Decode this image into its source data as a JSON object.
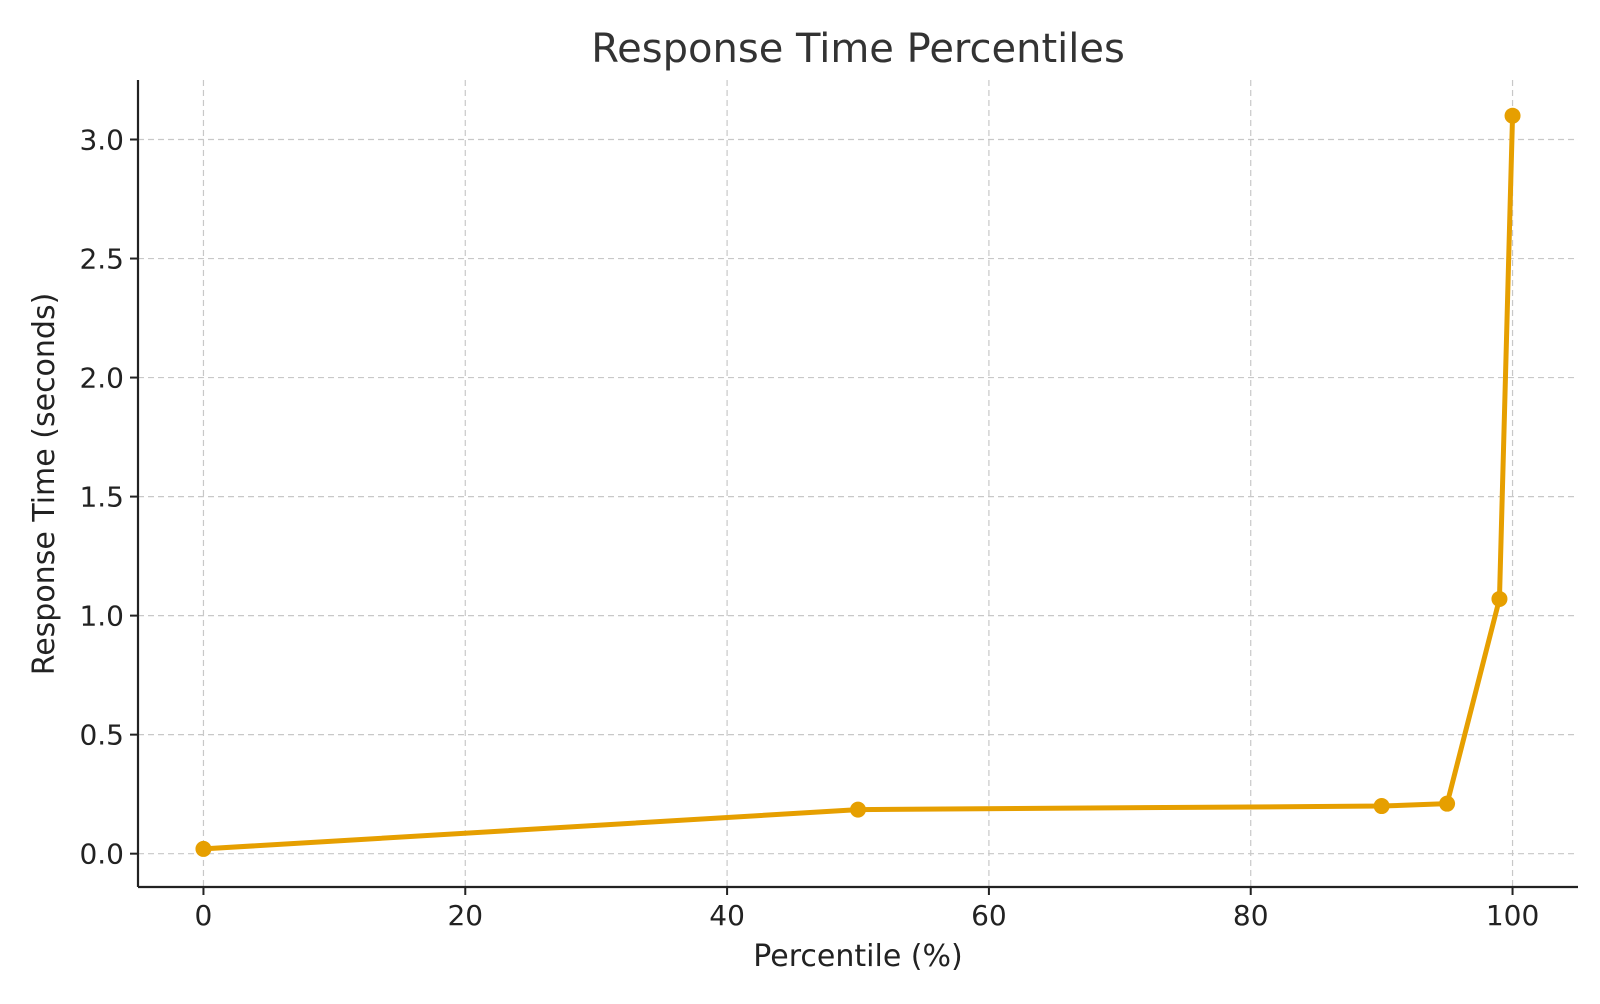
{
  "chart_data": {
    "type": "line",
    "title": "Response Time Percentiles",
    "xlabel": "Percentile (%)",
    "ylabel": "Response Time (seconds)",
    "xlim": [
      -5,
      105
    ],
    "ylim": [
      -0.14,
      3.25
    ],
    "xticks": [
      0,
      20,
      40,
      60,
      80,
      100
    ],
    "xtick_labels": [
      "0",
      "20",
      "40",
      "60",
      "80",
      "100"
    ],
    "yticks": [
      0.0,
      0.5,
      1.0,
      1.5,
      2.0,
      2.5,
      3.0
    ],
    "ytick_labels": [
      "0.0",
      "0.5",
      "1.0",
      "1.5",
      "2.0",
      "2.5",
      "3.0"
    ],
    "grid": true,
    "color": "#E69F00",
    "series": [
      {
        "x": [
          0,
          50,
          90,
          95,
          99,
          100
        ],
        "y": [
          0.02,
          0.185,
          0.2,
          0.21,
          1.07,
          3.1
        ]
      }
    ]
  }
}
